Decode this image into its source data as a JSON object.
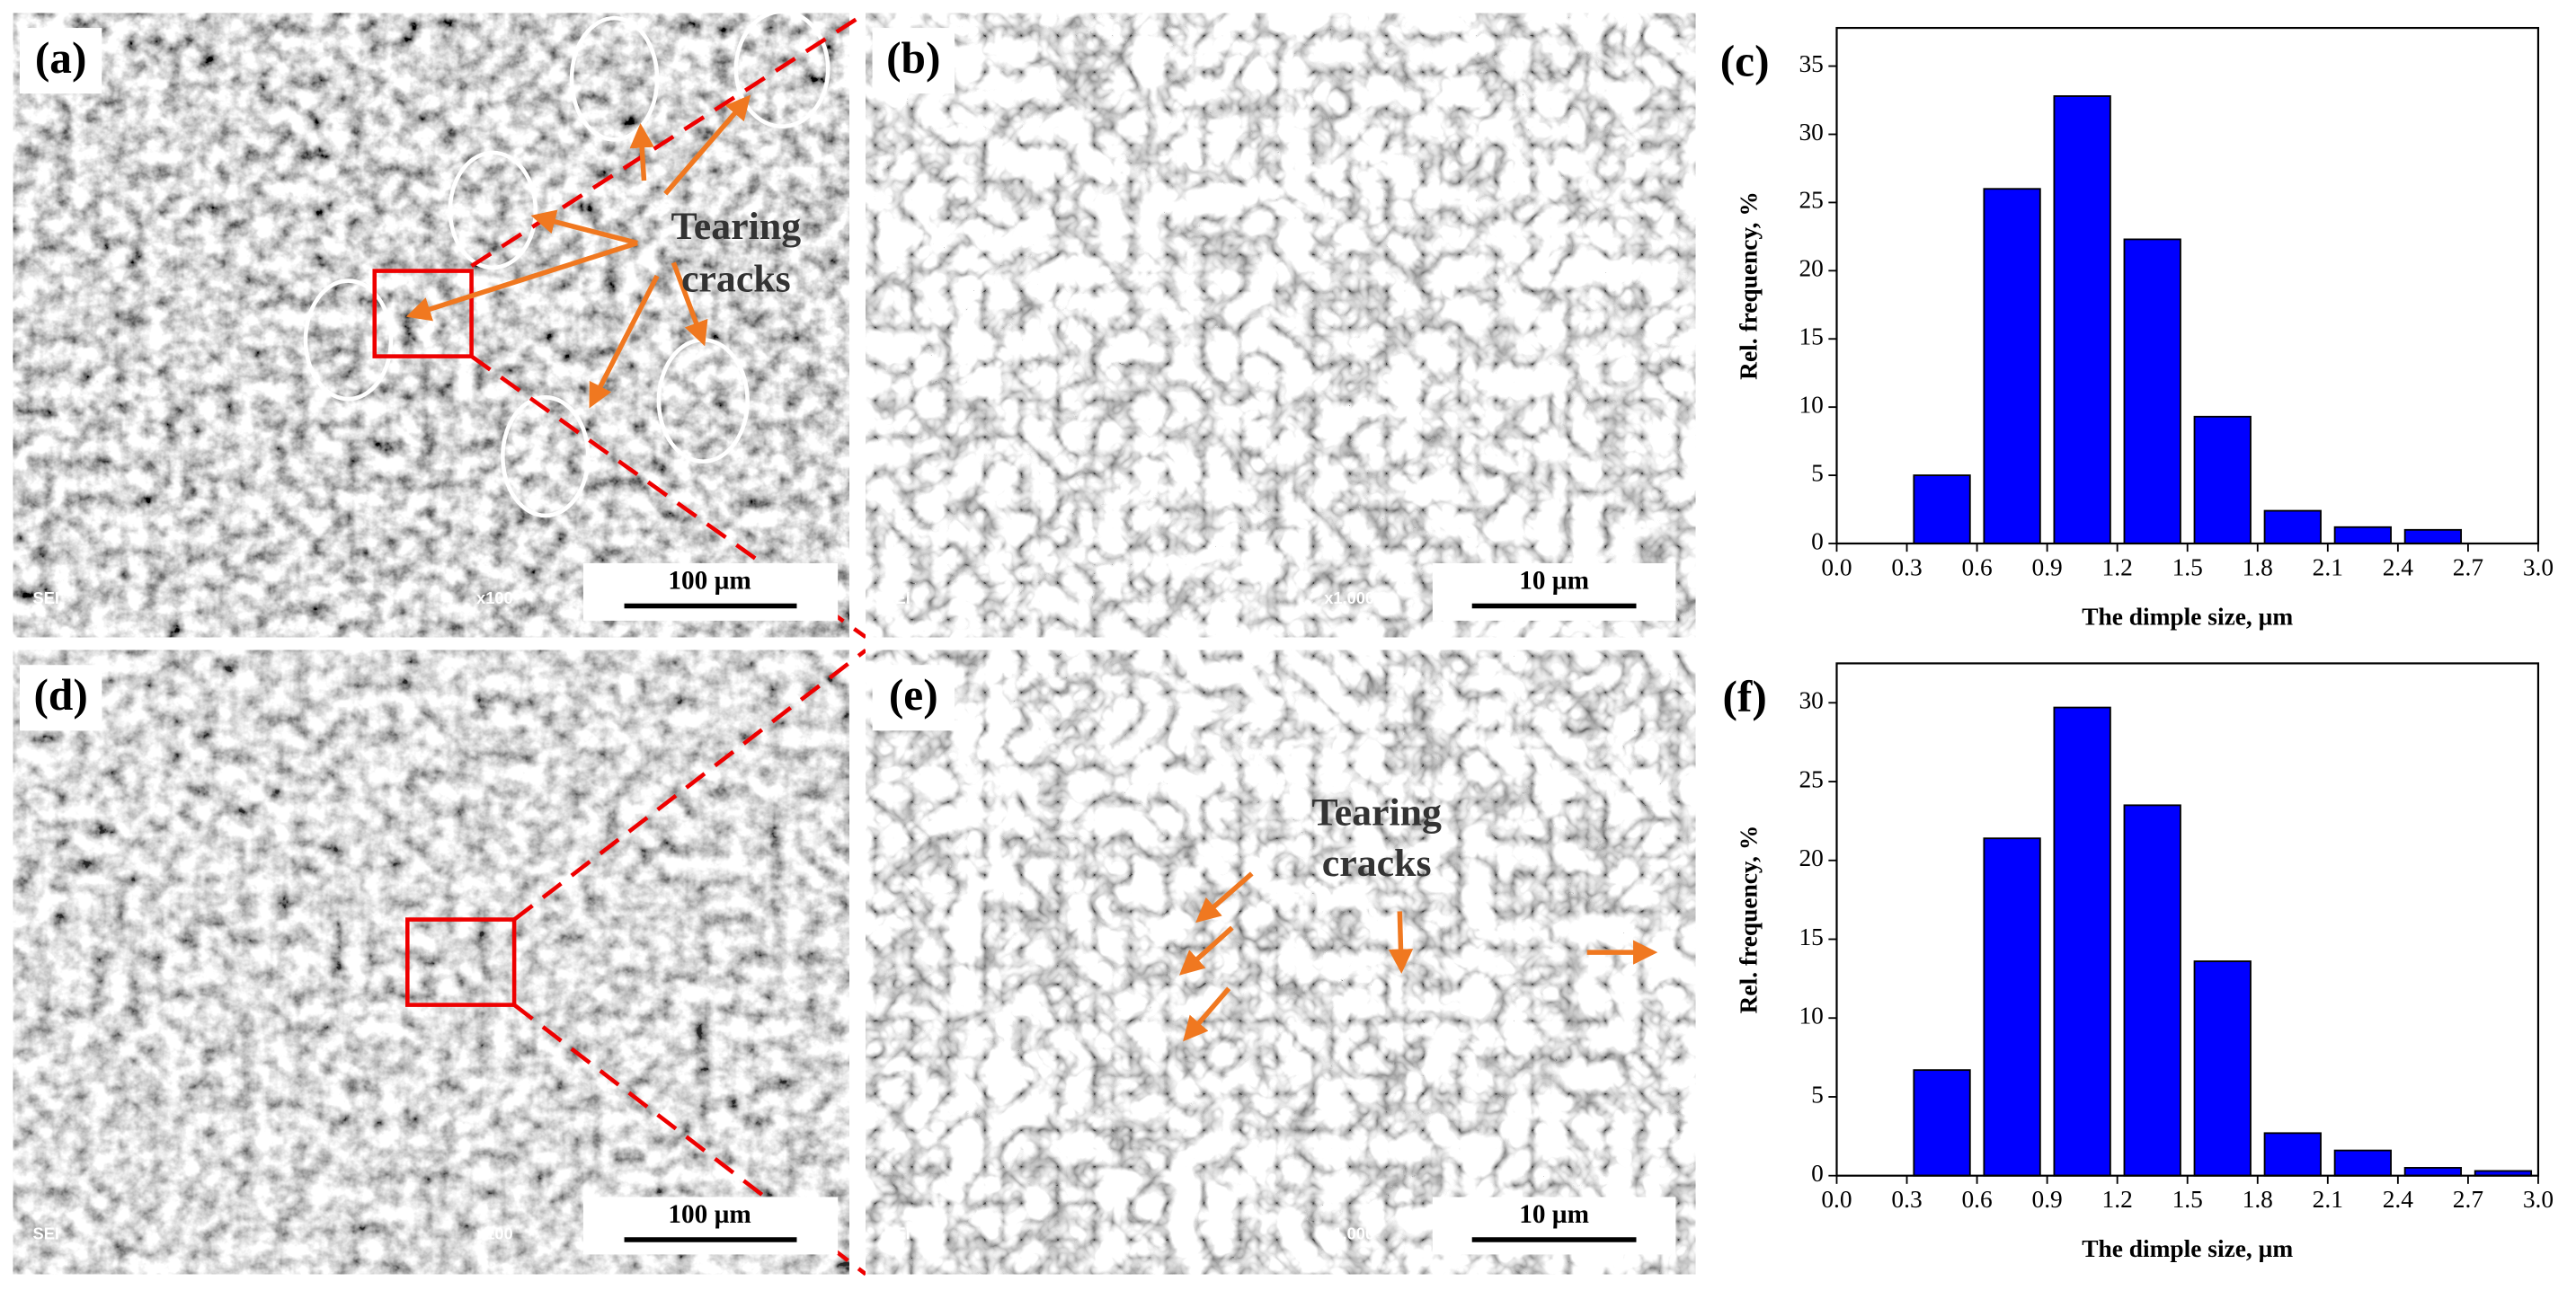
{
  "panels": [
    {
      "label": "(a)",
      "detector": "SEI",
      "magnification": "x100",
      "scale_bar": "100 µm",
      "annotation": [
        "Tearing",
        "cracks"
      ]
    },
    {
      "label": "(b)",
      "detector": "SEI",
      "magnification": "x1,000",
      "scale_bar": "10 µm"
    },
    {
      "label": "(d)",
      "detector": "SEI",
      "magnification": "x100",
      "scale_bar": "100 µm"
    },
    {
      "label": "(e)",
      "detector": "SEI",
      "magnification": "x1,000",
      "scale_bar": "10 µm",
      "annotation": [
        "Tearing",
        "cracks"
      ]
    }
  ],
  "chart_data": [
    {
      "type": "histogram",
      "panel_label": "(c)",
      "xlabel": "The dimple size, µm",
      "ylabel": "Rel. frequency, %",
      "bins": [
        0.3,
        0.6,
        0.9,
        1.2,
        1.5,
        1.8,
        2.1,
        2.4,
        2.7
      ],
      "values": [
        5.0,
        26.0,
        32.8,
        22.3,
        9.3,
        2.4,
        1.2,
        1.0
      ],
      "color": "#0000ff",
      "xlim": [
        0,
        3
      ],
      "ylim": [
        0,
        37.8
      ],
      "xticks": [
        {
          "value": 0,
          "label": "0.0"
        },
        {
          "value": 0.3,
          "label": "0.3"
        },
        {
          "value": 0.6,
          "label": "0.6"
        },
        {
          "value": 0.9,
          "label": "0.9"
        },
        {
          "value": 1.2,
          "label": "1.2"
        },
        {
          "value": 1.5,
          "label": "1.5"
        },
        {
          "value": 1.8,
          "label": "1.8"
        },
        {
          "value": 2.1,
          "label": "2.1"
        },
        {
          "value": 2.4,
          "label": "2.4"
        },
        {
          "value": 2.7,
          "label": "2.7"
        },
        {
          "value": 3,
          "label": "3.0"
        }
      ],
      "yticks": [
        0,
        5,
        10,
        15,
        20,
        25,
        30,
        35
      ]
    },
    {
      "type": "histogram",
      "panel_label": "(f)",
      "xlabel": "The dimple size, µm",
      "ylabel": "Rel. frequency, %",
      "bins": [
        0.3,
        0.6,
        0.9,
        1.2,
        1.5,
        1.8,
        2.1,
        2.4,
        2.7,
        3.0
      ],
      "values": [
        6.7,
        21.4,
        29.7,
        23.5,
        13.6,
        2.7,
        1.6,
        0.5,
        0.3
      ],
      "color": "#0000ff",
      "xlim": [
        0,
        3
      ],
      "ylim": [
        0,
        32.5
      ],
      "xticks": [
        {
          "value": 0,
          "label": "0.0"
        },
        {
          "value": 0.3,
          "label": "0.3"
        },
        {
          "value": 0.6,
          "label": "0.6"
        },
        {
          "value": 0.9,
          "label": "0.9"
        },
        {
          "value": 1.2,
          "label": "1.2"
        },
        {
          "value": 1.5,
          "label": "1.5"
        },
        {
          "value": 1.8,
          "label": "1.8"
        },
        {
          "value": 2.1,
          "label": "2.1"
        },
        {
          "value": 2.4,
          "label": "2.4"
        },
        {
          "value": 2.7,
          "label": "2.7"
        },
        {
          "value": 3,
          "label": "3.0"
        }
      ],
      "yticks": [
        0,
        5,
        10,
        15,
        20,
        25,
        30
      ]
    }
  ]
}
